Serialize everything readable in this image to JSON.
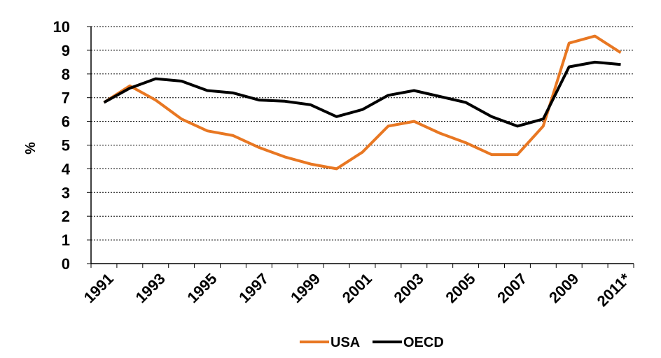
{
  "chart_data": {
    "type": "line",
    "title": "",
    "xlabel": "",
    "ylabel": "%",
    "ylim": [
      0,
      10
    ],
    "yticks": [
      "0",
      "1",
      "2",
      "3",
      "4",
      "5",
      "6",
      "7",
      "8",
      "9",
      "10"
    ],
    "x": [
      "1991",
      "1992",
      "1993",
      "1994",
      "1995",
      "1996",
      "1997",
      "1998",
      "1999",
      "2000",
      "2001",
      "2002",
      "2003",
      "2004",
      "2005",
      "2006",
      "2007",
      "2008",
      "2009",
      "2010",
      "2011*"
    ],
    "xtick_labels": [
      "1991",
      "1993",
      "1995",
      "1997",
      "1999",
      "2001",
      "2003",
      "2005",
      "2007",
      "2009",
      "2011*"
    ],
    "grid": true,
    "legend_position": "bottom",
    "series": [
      {
        "name": "USA",
        "color": "#e87722",
        "values": [
          6.8,
          7.5,
          6.9,
          6.1,
          5.6,
          5.4,
          4.9,
          4.5,
          4.2,
          4.0,
          4.7,
          5.8,
          6.0,
          5.5,
          5.1,
          4.6,
          4.6,
          5.8,
          9.3,
          9.6,
          8.9
        ]
      },
      {
        "name": "OECD",
        "color": "#000000",
        "values": [
          6.8,
          7.4,
          7.8,
          7.7,
          7.3,
          7.2,
          6.9,
          6.85,
          6.7,
          6.2,
          6.5,
          7.1,
          7.3,
          7.05,
          6.8,
          6.2,
          5.8,
          6.1,
          8.3,
          8.5,
          8.4
        ]
      }
    ]
  }
}
